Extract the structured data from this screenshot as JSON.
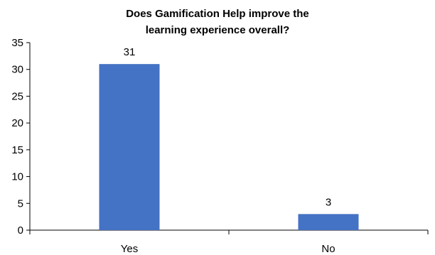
{
  "chart_data": {
    "type": "bar",
    "title_lines": [
      "Does Gamification Help improve the",
      "learning experience overall?"
    ],
    "categories": [
      "Yes",
      "No"
    ],
    "values": [
      31,
      3
    ],
    "data_labels": [
      "31",
      "3"
    ],
    "ylim": [
      0,
      35
    ],
    "yticks": [
      0,
      5,
      10,
      15,
      20,
      25,
      30,
      35
    ],
    "ytick_labels": [
      "0",
      "5",
      "10",
      "15",
      "20",
      "25",
      "30",
      "35"
    ],
    "bar_color": "#4472C4",
    "grid": false,
    "legend": "none"
  }
}
